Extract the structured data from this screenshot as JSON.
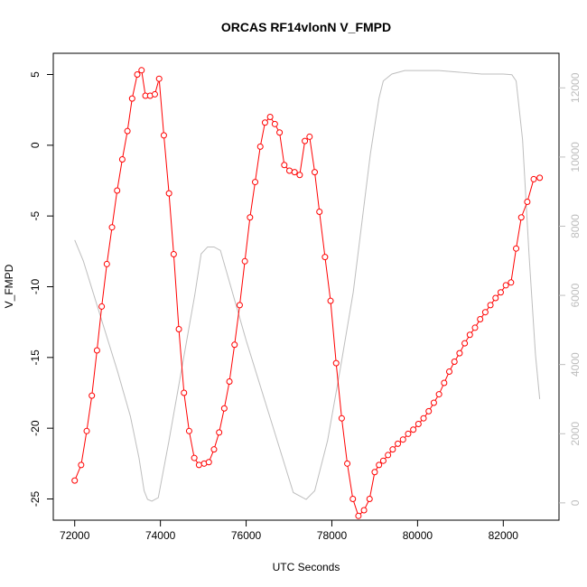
{
  "chart_data": {
    "type": "line",
    "title": "ORCAS RF14vlonN V_FMPD",
    "xlabel": "UTC Seconds",
    "ylabel": "V_FMPD",
    "y2label": "",
    "xlim": [
      71500,
      83300
    ],
    "ylim": [
      -26.5,
      6.5
    ],
    "y2lim": [
      -500,
      13000
    ],
    "xticks": [
      72000,
      74000,
      76000,
      78000,
      80000,
      82000
    ],
    "yticks": [
      -25,
      -20,
      -15,
      -10,
      -5,
      0,
      5
    ],
    "y2ticks": [
      0,
      2000,
      4000,
      6000,
      8000,
      10000,
      12000
    ],
    "grid": false,
    "colors": {
      "primary": "#ff0000",
      "secondary": "#bebebe",
      "axis": "#000000"
    },
    "series": [
      {
        "axis": "left",
        "style": "line+open-circles",
        "x": [
          72000,
          72150,
          72280,
          72400,
          72520,
          72630,
          72750,
          72870,
          72990,
          73110,
          73230,
          73340,
          73460,
          73560,
          73650,
          73760,
          73870,
          73970,
          74080,
          74200,
          74310,
          74430,
          74550,
          74670,
          74790,
          74900,
          75020,
          75130,
          75250,
          75370,
          75490,
          75610,
          75730,
          75850,
          75970,
          76090,
          76210,
          76330,
          76440,
          76560,
          76670,
          76780,
          76890,
          77010,
          77130,
          77250,
          77370,
          77480,
          77600,
          77710,
          77840,
          77970,
          78100,
          78230,
          78360,
          78490,
          78620,
          78750,
          78880,
          79000,
          79100,
          79200,
          79310,
          79420,
          79540,
          79660,
          79780,
          79900,
          80020,
          80140,
          80260,
          80380,
          80500,
          80620,
          80740,
          80860,
          80980,
          81100,
          81220,
          81340,
          81460,
          81580,
          81700,
          81820,
          81940,
          82060,
          82180,
          82300,
          82420,
          82560,
          82710,
          82850
        ],
        "y": [
          -23.7,
          -22.6,
          -20.2,
          -17.7,
          -14.5,
          -11.4,
          -8.4,
          -5.8,
          -3.2,
          -1.0,
          1.0,
          3.3,
          5.0,
          5.3,
          3.5,
          3.5,
          3.6,
          4.7,
          0.7,
          -3.4,
          -7.7,
          -13.0,
          -17.5,
          -20.2,
          -22.1,
          -22.6,
          -22.5,
          -22.4,
          -21.5,
          -20.3,
          -18.6,
          -16.7,
          -14.1,
          -11.3,
          -8.2,
          -5.1,
          -2.6,
          -0.1,
          1.6,
          2.0,
          1.5,
          0.9,
          -1.4,
          -1.8,
          -1.9,
          -2.1,
          0.3,
          0.6,
          -1.9,
          -4.7,
          -7.9,
          -11.0,
          -15.4,
          -19.3,
          -22.5,
          -25.0,
          -26.2,
          -25.8,
          -25.0,
          -23.1,
          -22.6,
          -22.3,
          -21.9,
          -21.5,
          -21.1,
          -20.8,
          -20.4,
          -20.1,
          -19.7,
          -19.3,
          -18.8,
          -18.2,
          -17.6,
          -16.8,
          -16.0,
          -15.3,
          -14.7,
          -14.0,
          -13.4,
          -12.9,
          -12.3,
          -11.8,
          -11.3,
          -10.8,
          -10.4,
          -9.9,
          -9.7,
          -7.3,
          -5.1,
          -4.0,
          -2.4,
          -2.3
        ]
      },
      {
        "axis": "right",
        "style": "line",
        "x": [
          72000,
          72200,
          72400,
          72700,
          73000,
          73300,
          73500,
          73620,
          73700,
          73800,
          73950,
          74200,
          74500,
          74800,
          74950,
          75100,
          75250,
          75400,
          75700,
          76000,
          76300,
          76600,
          76900,
          77100,
          77250,
          77400,
          77600,
          77900,
          78200,
          78500,
          78700,
          78800,
          78900,
          79000,
          79100,
          79200,
          79400,
          79700,
          80000,
          80500,
          81000,
          81500,
          82000,
          82200,
          82300,
          82450,
          82600,
          82750,
          82850
        ],
        "y": [
          7600,
          7000,
          6200,
          5000,
          3800,
          2500,
          1300,
          350,
          100,
          50,
          150,
          1800,
          3900,
          6000,
          7200,
          7400,
          7400,
          7300,
          6000,
          4700,
          3500,
          2300,
          1100,
          300,
          200,
          100,
          350,
          1800,
          3900,
          6100,
          8100,
          9100,
          10100,
          10900,
          11700,
          12200,
          12400,
          12500,
          12500,
          12500,
          12450,
          12400,
          12400,
          12380,
          12200,
          10500,
          7200,
          4300,
          3000
        ]
      }
    ]
  }
}
